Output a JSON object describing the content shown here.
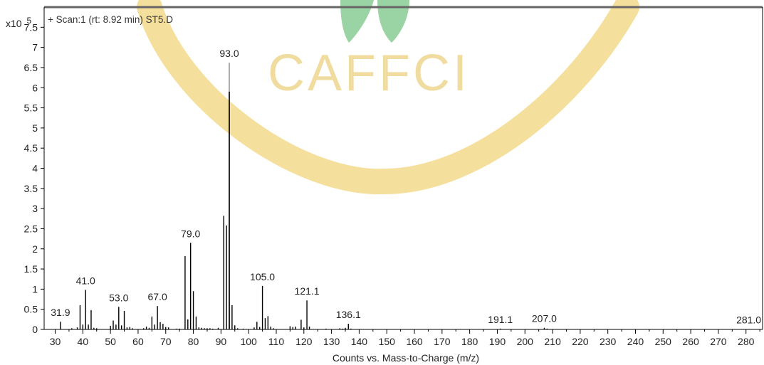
{
  "scan_label": "+ Scan:1 (rt: 8.92 min) ST5.D",
  "watermark": {
    "text": "CAFFCI",
    "colors": {
      "ring": "#f3d98b",
      "leaf": "#8fcf9a",
      "text": "#f1dca0"
    }
  },
  "chart_data": {
    "type": "bar",
    "title": "",
    "xlabel": "Counts vs. Mass-to-Charge (m/z)",
    "ylabel": "",
    "y_multiplier": {
      "base": "x10",
      "exponent": "5"
    },
    "xlim": [
      26,
      286
    ],
    "ylim": [
      0,
      8.0
    ],
    "x_ticks": [
      30,
      40,
      50,
      60,
      70,
      80,
      90,
      100,
      110,
      120,
      130,
      140,
      150,
      160,
      170,
      180,
      190,
      200,
      210,
      220,
      230,
      240,
      250,
      260,
      270,
      280
    ],
    "y_ticks": [
      "0",
      "0.5",
      "1",
      "1.5",
      "2",
      "2.5",
      "3",
      "3.5",
      "4",
      "4.5",
      "5",
      "5.5",
      "6",
      "6.5",
      "7",
      "7.5"
    ],
    "peaks": [
      {
        "mz": 31.9,
        "y": 0.19
      },
      {
        "mz": 36,
        "y": 0.03
      },
      {
        "mz": 38,
        "y": 0.05
      },
      {
        "mz": 39,
        "y": 0.6
      },
      {
        "mz": 40,
        "y": 0.12
      },
      {
        "mz": 41,
        "y": 0.98
      },
      {
        "mz": 42,
        "y": 0.12
      },
      {
        "mz": 43,
        "y": 0.48
      },
      {
        "mz": 44,
        "y": 0.04
      },
      {
        "mz": 45,
        "y": 0.03
      },
      {
        "mz": 50,
        "y": 0.09
      },
      {
        "mz": 51,
        "y": 0.22
      },
      {
        "mz": 52,
        "y": 0.12
      },
      {
        "mz": 53,
        "y": 0.56
      },
      {
        "mz": 54,
        "y": 0.1
      },
      {
        "mz": 55,
        "y": 0.46
      },
      {
        "mz": 56,
        "y": 0.05
      },
      {
        "mz": 57,
        "y": 0.06
      },
      {
        "mz": 58,
        "y": 0.03
      },
      {
        "mz": 62,
        "y": 0.03
      },
      {
        "mz": 63,
        "y": 0.07
      },
      {
        "mz": 64,
        "y": 0.04
      },
      {
        "mz": 65,
        "y": 0.32
      },
      {
        "mz": 66,
        "y": 0.12
      },
      {
        "mz": 67,
        "y": 0.58
      },
      {
        "mz": 68,
        "y": 0.18
      },
      {
        "mz": 69,
        "y": 0.14
      },
      {
        "mz": 70,
        "y": 0.06
      },
      {
        "mz": 71,
        "y": 0.05
      },
      {
        "mz": 74,
        "y": 0.02
      },
      {
        "mz": 75,
        "y": 0.02
      },
      {
        "mz": 77,
        "y": 1.82
      },
      {
        "mz": 78,
        "y": 0.25
      },
      {
        "mz": 79,
        "y": 2.15
      },
      {
        "mz": 80,
        "y": 0.95
      },
      {
        "mz": 81,
        "y": 0.32
      },
      {
        "mz": 82,
        "y": 0.05
      },
      {
        "mz": 83,
        "y": 0.04
      },
      {
        "mz": 84,
        "y": 0.03
      },
      {
        "mz": 85,
        "y": 0.03
      },
      {
        "mz": 86,
        "y": 0.03
      },
      {
        "mz": 87,
        "y": 0.02
      },
      {
        "mz": 89,
        "y": 0.04
      },
      {
        "mz": 91,
        "y": 2.82
      },
      {
        "mz": 92,
        "y": 2.58
      },
      {
        "mz": 93,
        "y": 6.62
      },
      {
        "mz": 94,
        "y": 0.6
      },
      {
        "mz": 95,
        "y": 0.1
      },
      {
        "mz": 96,
        "y": 0.03
      },
      {
        "mz": 98,
        "y": 0.02
      },
      {
        "mz": 102,
        "y": 0.05
      },
      {
        "mz": 103,
        "y": 0.19
      },
      {
        "mz": 104,
        "y": 0.06
      },
      {
        "mz": 105,
        "y": 1.08
      },
      {
        "mz": 106,
        "y": 0.28
      },
      {
        "mz": 107,
        "y": 0.33
      },
      {
        "mz": 108,
        "y": 0.07
      },
      {
        "mz": 109,
        "y": 0.03
      },
      {
        "mz": 115,
        "y": 0.08
      },
      {
        "mz": 116,
        "y": 0.06
      },
      {
        "mz": 117,
        "y": 0.07
      },
      {
        "mz": 119,
        "y": 0.24
      },
      {
        "mz": 120,
        "y": 0.05
      },
      {
        "mz": 121.1,
        "y": 0.72
      },
      {
        "mz": 122,
        "y": 0.07
      },
      {
        "mz": 128,
        "y": 0.02
      },
      {
        "mz": 133,
        "y": 0.03
      },
      {
        "mz": 134,
        "y": 0.02
      },
      {
        "mz": 135,
        "y": 0.04
      },
      {
        "mz": 136.1,
        "y": 0.14
      },
      {
        "mz": 137,
        "y": 0.02
      },
      {
        "mz": 191.1,
        "y": 0.02
      },
      {
        "mz": 207.0,
        "y": 0.04
      },
      {
        "mz": 208,
        "y": 0.02
      },
      {
        "mz": 281.0,
        "y": 0.01
      }
    ],
    "peak_labels": [
      {
        "text": "31.9",
        "mz": 31.9,
        "y": 0.19
      },
      {
        "text": "41.0",
        "mz": 41.0,
        "y": 0.98
      },
      {
        "text": "53.0",
        "mz": 53.0,
        "y": 0.56
      },
      {
        "text": "67.0",
        "mz": 67.0,
        "y": 0.58
      },
      {
        "text": "79.0",
        "mz": 79.0,
        "y": 2.15
      },
      {
        "text": "93.0",
        "mz": 93.0,
        "y": 6.62
      },
      {
        "text": "105.0",
        "mz": 105.0,
        "y": 1.08
      },
      {
        "text": "121.1",
        "mz": 121.1,
        "y": 0.72
      },
      {
        "text": "136.1",
        "mz": 136.1,
        "y": 0.14
      },
      {
        "text": "191.1",
        "mz": 191.1,
        "y": 0.02
      },
      {
        "text": "207.0",
        "mz": 207.0,
        "y": 0.04
      },
      {
        "text": "281.0",
        "mz": 281.0,
        "y": 0.01
      }
    ],
    "grid": false,
    "legend": "none",
    "colors": {
      "peak": "#000000",
      "highlight_peak": "#808080",
      "axis": "#000000",
      "frame_top": "#666666"
    }
  }
}
